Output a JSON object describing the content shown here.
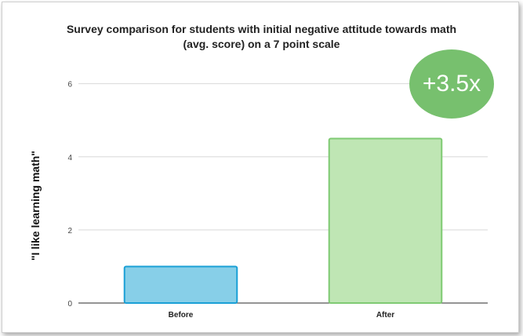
{
  "chart_data": {
    "type": "bar",
    "title": "Survey comparison for students with initial negative attitude towards math",
    "subtitle": "(avg. score) on a 7 point scale",
    "ylabel": "\"I like learning math\"",
    "xlabel": "",
    "categories": [
      "Before",
      "After"
    ],
    "values": [
      1.0,
      4.5
    ],
    "bar_colors": [
      "#87cfe8",
      "#bfe6b4"
    ],
    "bar_edge_colors": [
      "#1aa0d6",
      "#7fca73"
    ],
    "ylim": [
      0,
      6.4
    ],
    "yticks": [
      0,
      2,
      4,
      6
    ],
    "grid": true,
    "annotation": "+3.5x",
    "annotation_color": "#77c06e"
  }
}
